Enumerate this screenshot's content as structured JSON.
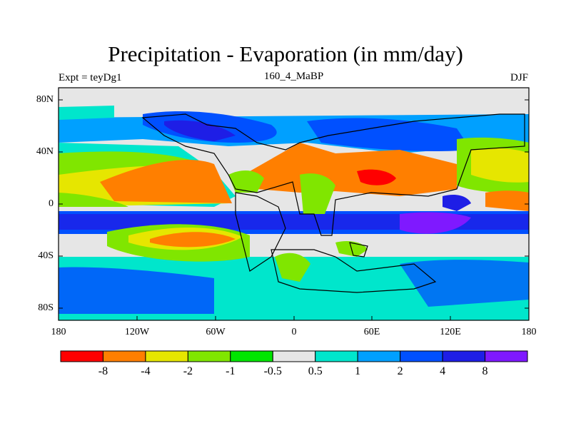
{
  "header": {
    "title": "Precipitation - Evaporation (in mm/day)",
    "experiment": "Expt = teyDg1",
    "subtitle": "160_4_MaBP",
    "season": "DJF"
  },
  "map": {
    "lat_ticks": [
      "80N",
      "40N",
      "0",
      "40S",
      "80S"
    ],
    "lon_ticks": [
      "180",
      "120W",
      "60W",
      "0",
      "60E",
      "120E",
      "180"
    ]
  },
  "colorbar": {
    "colors": [
      "#ff0000",
      "#ff7f00",
      "#e6e600",
      "#80e600",
      "#00e600",
      "#e6e6e6",
      "#00e6cc",
      "#00a0ff",
      "#0050ff",
      "#1e1ee6",
      "#7f19ff"
    ],
    "labels": [
      "-8",
      "-4",
      "-2",
      "-1",
      "-0.5",
      "0.5",
      "1",
      "2",
      "4",
      "8"
    ]
  }
}
